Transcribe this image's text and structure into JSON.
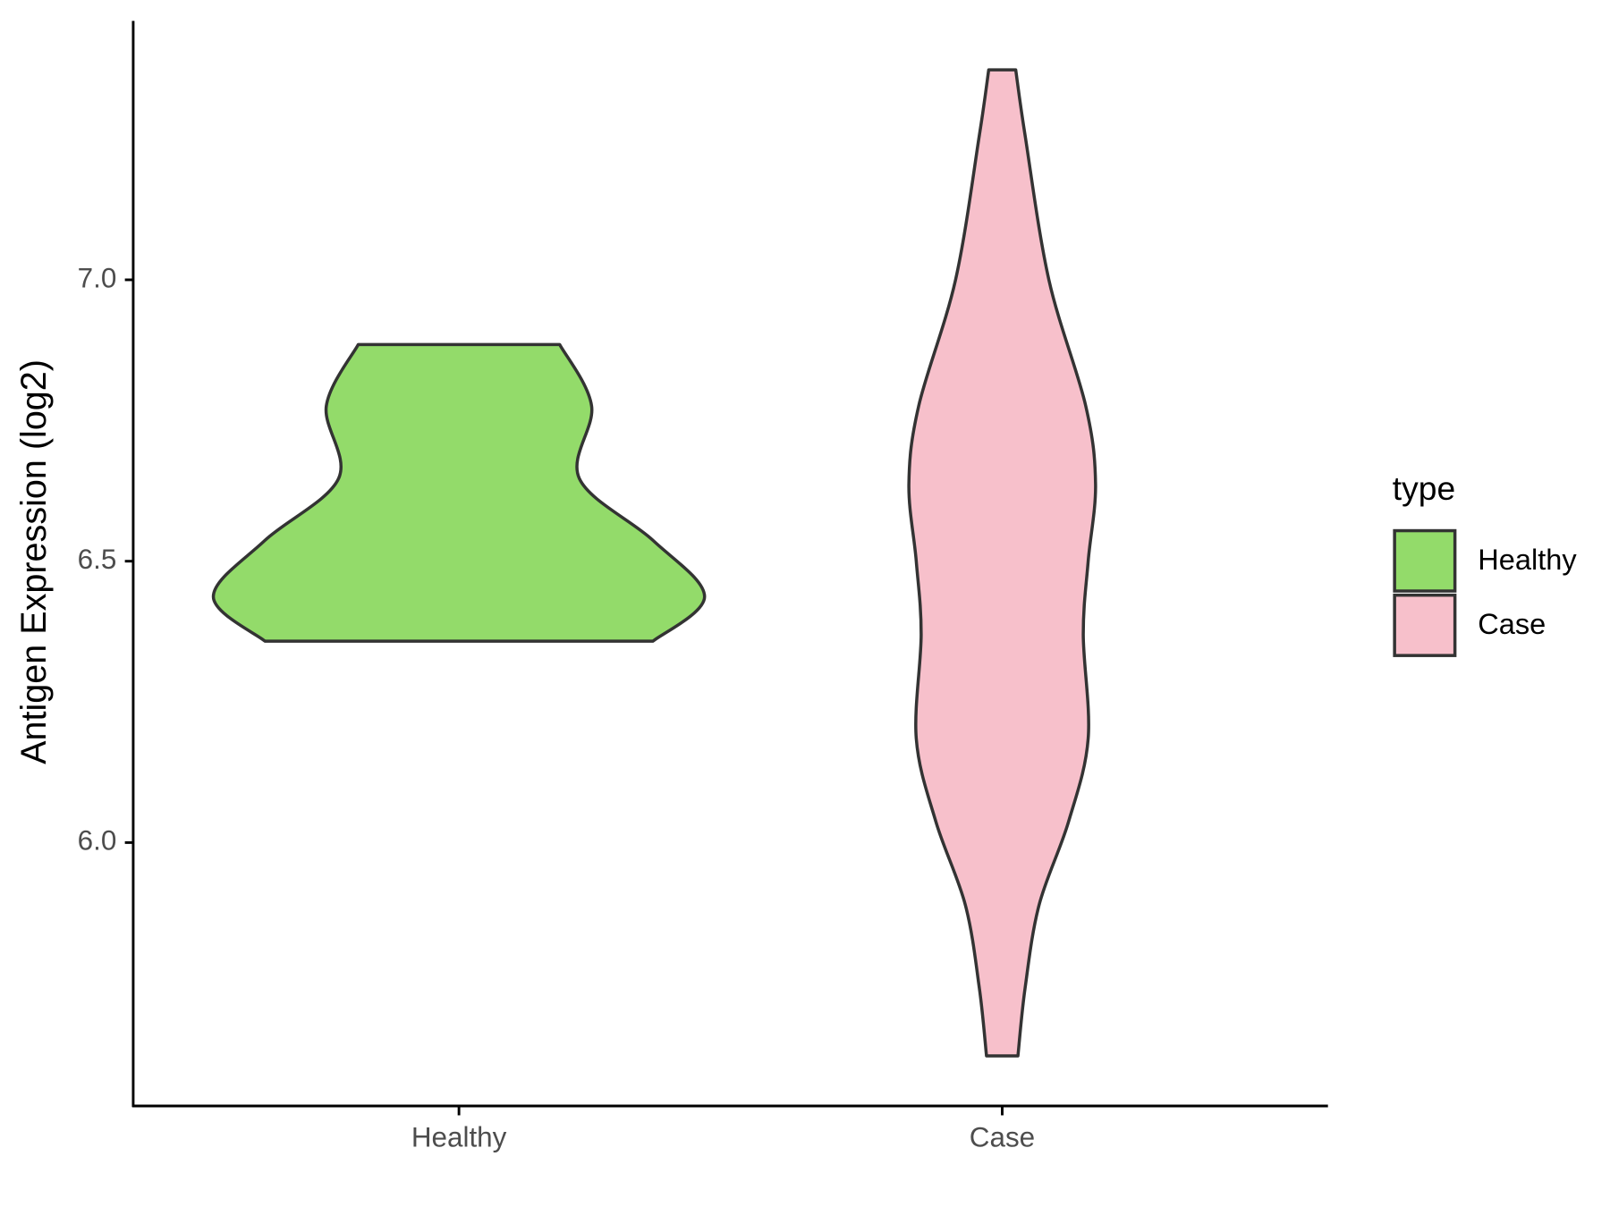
{
  "chart_data": {
    "type": "violin",
    "y_label": "Antigen Expression (log2)",
    "categories": [
      "Healthy",
      "Case"
    ],
    "series": [
      {
        "name": "Healthy",
        "color": "#93db6a",
        "y": [
          6.885,
          6.776,
          6.647,
          6.537,
          6.437,
          6.358
        ],
        "density": [
          0.41,
          0.54,
          0.49,
          0.79,
          1.0,
          0.79
        ]
      },
      {
        "name": "Case",
        "color": "#f7c0cb",
        "y": [
          7.373,
          7.257,
          7.0,
          6.776,
          6.637,
          6.5,
          6.37,
          6.185,
          6.037,
          5.889,
          5.741,
          5.621
        ],
        "density": [
          0.055,
          0.093,
          0.19,
          0.34,
          0.38,
          0.35,
          0.33,
          0.35,
          0.27,
          0.15,
          0.093,
          0.064
        ]
      }
    ],
    "ylim": [
      5.532,
      7.46
    ],
    "yticks": [
      {
        "value": 6,
        "label": "6.0"
      },
      {
        "value": 6.5,
        "label": "6.5"
      },
      {
        "value": 7,
        "label": "7.0"
      }
    ],
    "legend_title": "type",
    "legend_position": "right"
  }
}
